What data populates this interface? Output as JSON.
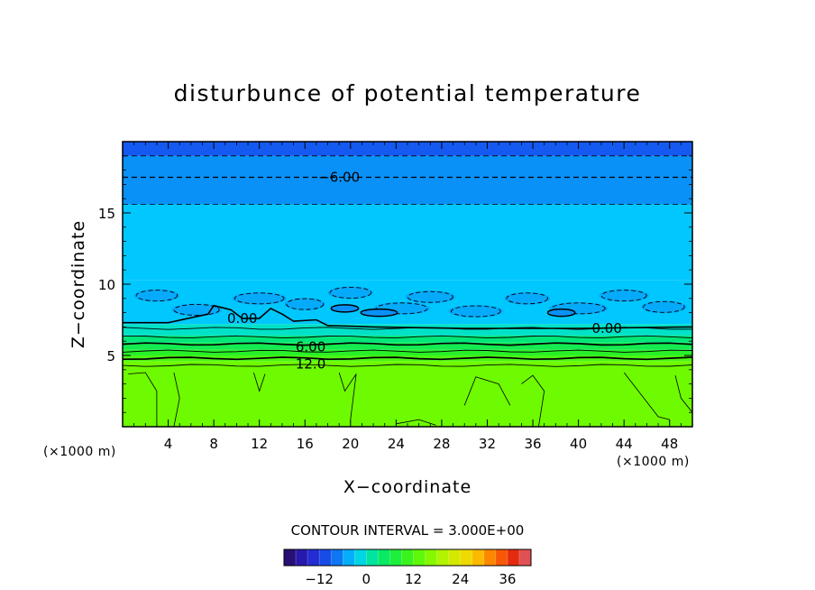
{
  "chart_data": {
    "type": "heatmap",
    "title": "disturbunce of potential temperature",
    "xlabel": "X−coordinate",
    "ylabel": "Z−coordinate",
    "x_unit": "(×1000 m)",
    "x_unit_right": "(×1000 m)",
    "xlim": [
      0,
      50
    ],
    "ylim": [
      0,
      20
    ],
    "x_ticks": [
      4,
      8,
      12,
      16,
      20,
      24,
      28,
      32,
      36,
      40,
      44,
      48
    ],
    "y_ticks": [
      5,
      10,
      15
    ],
    "contour_interval_label": "CONTOUR INTERVAL = 3.000E+00",
    "contour_interval": 3.0,
    "contour_labels": [
      {
        "text": "−6.00",
        "x": 19,
        "z": 17.5
      },
      {
        "text": "0.00",
        "x": 10.5,
        "z": 7.6
      },
      {
        "text": "0.00",
        "x": 42.5,
        "z": 6.9
      },
      {
        "text": "6.00",
        "x": 16.5,
        "z": 5.6
      },
      {
        "text": "12.0",
        "x": 16.5,
        "z": 4.4
      }
    ],
    "colorbar": {
      "min": -21,
      "max": 42,
      "step": 3,
      "tick_values": [
        -12,
        0,
        12,
        24,
        36
      ],
      "tick_labels": [
        "−12",
        "0",
        "12",
        "24",
        "36"
      ]
    },
    "bands": [
      {
        "z_bottom": 0,
        "z_top": 4.6,
        "value": 15
      },
      {
        "z_bottom": 4.6,
        "z_top": 5.0,
        "value": 12
      },
      {
        "z_bottom": 5.0,
        "z_top": 5.4,
        "value": 9
      },
      {
        "z_bottom": 5.4,
        "z_top": 5.9,
        "value": 6
      },
      {
        "z_bottom": 5.9,
        "z_top": 6.4,
        "value": 3
      },
      {
        "z_bottom": 6.4,
        "z_top": 7.2,
        "value": 0
      },
      {
        "z_bottom": 7.2,
        "z_top": 10.3,
        "value": -3
      },
      {
        "z_bottom": 10.3,
        "z_top": 15.6,
        "value": -3
      },
      {
        "z_bottom": 15.6,
        "z_top": 19.0,
        "value": -6
      },
      {
        "z_bottom": 19.0,
        "z_top": 20.0,
        "value": -9
      }
    ],
    "dashed_levels_z": [
      15.6,
      17.5,
      19.0
    ],
    "solid_levels_z": [
      4.3,
      4.8,
      5.3,
      5.8,
      6.3,
      6.9
    ],
    "grid": false,
    "legend": "bottom-center"
  }
}
